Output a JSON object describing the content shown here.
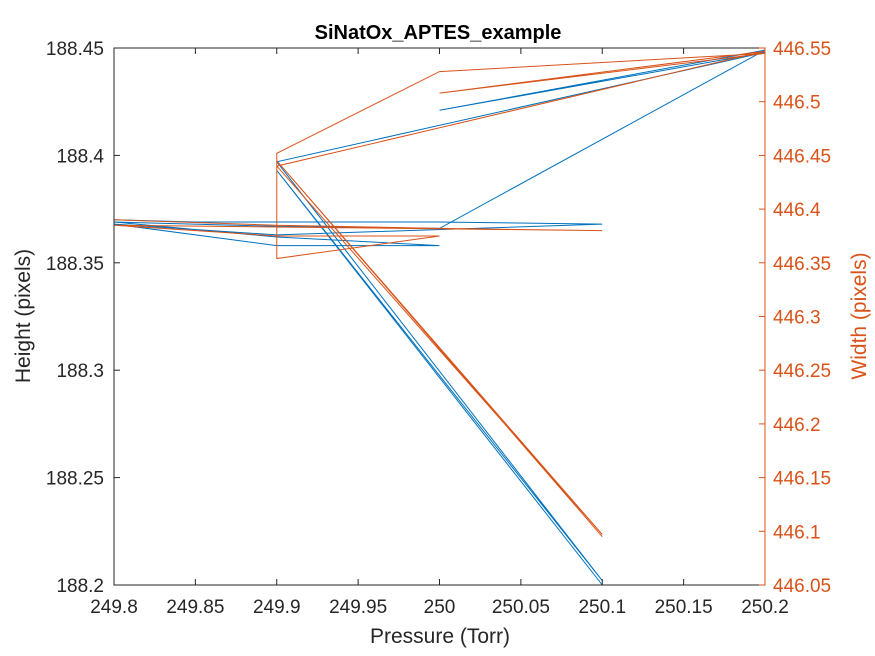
{
  "chart_data": {
    "type": "line",
    "title": "SiNatOx_APTES_example",
    "xlabel": "Pressure (Torr)",
    "ylabel_left": "Height (pixels)",
    "ylabel_right": "Width (pixels)",
    "xlim": [
      249.8,
      250.2
    ],
    "ylim_left": [
      188.2,
      188.45
    ],
    "ylim_right": [
      446.05,
      446.55
    ],
    "xticks": [
      "249.8",
      "249.85",
      "249.9",
      "249.95",
      "250",
      "250.05",
      "250.1",
      "250.15",
      "250.2"
    ],
    "yticks_left": [
      "188.2",
      "188.25",
      "188.3",
      "188.35",
      "188.4",
      "188.45"
    ],
    "yticks_right": [
      "446.05",
      "446.1",
      "446.15",
      "446.2",
      "446.25",
      "446.3",
      "446.35",
      "446.4",
      "446.45",
      "446.5",
      "446.55"
    ],
    "grid": false,
    "colors": {
      "left": "#0072bd",
      "right": "#d95319"
    },
    "series": [
      {
        "axis": "left",
        "color": "#0072bd",
        "x": [
          249.8,
          249.85,
          250.0,
          250.1,
          249.9,
          249.8,
          249.9,
          250.0,
          249.9,
          249.8,
          249.9,
          250.0,
          250.2,
          250.0,
          250.2,
          249.9,
          250.1,
          249.9,
          250.1
        ],
        "y": [
          188.37,
          188.369,
          188.369,
          188.368,
          188.363,
          188.368,
          188.358,
          188.358,
          188.362,
          188.369,
          188.367,
          188.366,
          188.449,
          188.421,
          188.448,
          188.397,
          188.202,
          188.393,
          188.2
        ]
      },
      {
        "axis": "right",
        "color": "#d95319",
        "x": [
          249.8,
          249.9,
          250.0,
          250.1,
          249.8,
          249.9,
          250.0,
          249.9,
          249.9,
          250.0,
          250.2,
          250.0,
          250.2,
          249.9,
          250.1,
          249.9,
          250.1
        ],
        "y": [
          446.39,
          446.385,
          446.382,
          446.38,
          446.385,
          446.375,
          446.375,
          446.354,
          446.452,
          446.528,
          446.545,
          446.508,
          446.547,
          446.44,
          446.097,
          446.445,
          446.095
        ]
      }
    ]
  }
}
